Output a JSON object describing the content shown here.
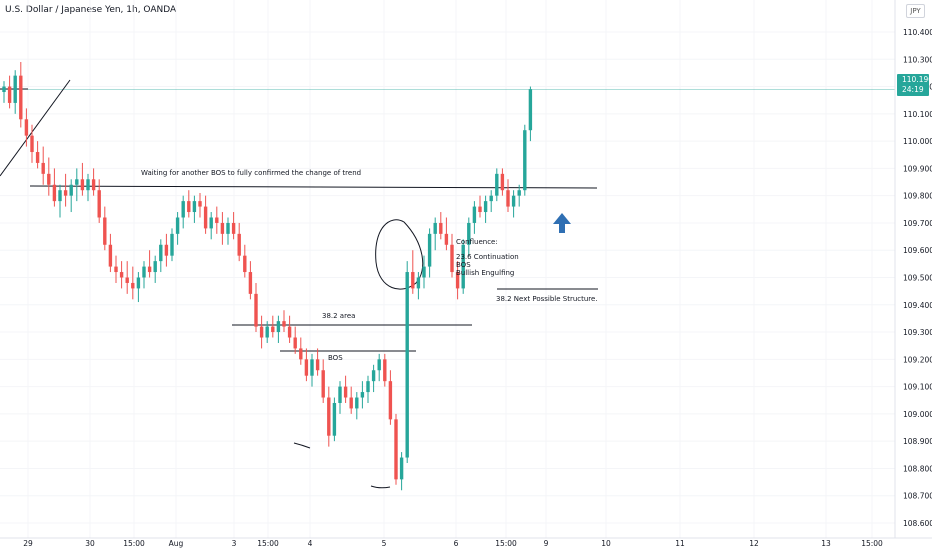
{
  "header": {
    "title": "U.S. Dollar / Japanese Yen, 1h, OANDA",
    "currency_badge": "JPY"
  },
  "last_price": {
    "value": "110.190",
    "countdown": "24:19",
    "color": "#26a69a"
  },
  "colors": {
    "up": "#26a69a",
    "down": "#ef5350",
    "last_price_line": "#26a69a",
    "arrow": "#2f6fb3"
  },
  "chart_data": {
    "type": "candlestick",
    "symbol": "USDJPY",
    "interval": "1h",
    "y_ticks": [
      "110.400",
      "110.300",
      "110.200",
      "110.100",
      "110.000",
      "109.900",
      "109.800",
      "109.700",
      "109.600",
      "109.500",
      "109.400",
      "109.300",
      "109.200",
      "109.100",
      "109.000",
      "108.900",
      "108.800",
      "108.700",
      "108.600"
    ],
    "x_ticks": [
      "29",
      "30",
      "15:00",
      "Aug",
      "3",
      "15:00",
      "4",
      "5",
      "6",
      "15:00",
      "9",
      "10",
      "11",
      "12",
      "13",
      "15:00"
    ],
    "ylim": [
      108.6,
      110.4
    ],
    "candles": [
      [
        110.18,
        110.22,
        110.14,
        110.2
      ],
      [
        110.2,
        110.24,
        110.12,
        110.14
      ],
      [
        110.14,
        110.26,
        110.1,
        110.24
      ],
      [
        110.24,
        110.29,
        110.05,
        110.08
      ],
      [
        110.08,
        110.12,
        109.98,
        110.02
      ],
      [
        110.02,
        110.06,
        109.92,
        109.96
      ],
      [
        109.96,
        110.0,
        109.9,
        109.92
      ],
      [
        109.92,
        109.98,
        109.84,
        109.88
      ],
      [
        109.88,
        109.94,
        109.8,
        109.84
      ],
      [
        109.84,
        109.9,
        109.76,
        109.78
      ],
      [
        109.78,
        109.84,
        109.72,
        109.82
      ],
      [
        109.82,
        109.88,
        109.76,
        109.8
      ],
      [
        109.8,
        109.86,
        109.74,
        109.84
      ],
      [
        109.84,
        109.9,
        109.78,
        109.86
      ],
      [
        109.86,
        109.92,
        109.8,
        109.82
      ],
      [
        109.82,
        109.88,
        109.78,
        109.86
      ],
      [
        109.86,
        109.9,
        109.8,
        109.82
      ],
      [
        109.82,
        109.86,
        109.7,
        109.72
      ],
      [
        109.72,
        109.76,
        109.6,
        109.62
      ],
      [
        109.62,
        109.66,
        109.52,
        109.54
      ],
      [
        109.54,
        109.58,
        109.48,
        109.52
      ],
      [
        109.52,
        109.56,
        109.46,
        109.5
      ],
      [
        109.5,
        109.56,
        109.44,
        109.48
      ],
      [
        109.48,
        109.54,
        109.42,
        109.46
      ],
      [
        109.46,
        109.52,
        109.41,
        109.5
      ],
      [
        109.5,
        109.56,
        109.46,
        109.54
      ],
      [
        109.54,
        109.6,
        109.5,
        109.52
      ],
      [
        109.52,
        109.58,
        109.48,
        109.56
      ],
      [
        109.56,
        109.64,
        109.52,
        109.62
      ],
      [
        109.62,
        109.66,
        109.54,
        109.58
      ],
      [
        109.58,
        109.68,
        109.56,
        109.66
      ],
      [
        109.66,
        109.74,
        109.62,
        109.72
      ],
      [
        109.72,
        109.8,
        109.68,
        109.78
      ],
      [
        109.78,
        109.82,
        109.72,
        109.74
      ],
      [
        109.74,
        109.8,
        109.7,
        109.78
      ],
      [
        109.78,
        109.81,
        109.72,
        109.76
      ],
      [
        109.76,
        109.8,
        109.66,
        109.68
      ],
      [
        109.68,
        109.74,
        109.64,
        109.72
      ],
      [
        109.72,
        109.76,
        109.66,
        109.7
      ],
      [
        109.7,
        109.74,
        109.62,
        109.66
      ],
      [
        109.66,
        109.72,
        109.62,
        109.7
      ],
      [
        109.7,
        109.74,
        109.64,
        109.66
      ],
      [
        109.66,
        109.7,
        109.56,
        109.58
      ],
      [
        109.58,
        109.62,
        109.5,
        109.52
      ],
      [
        109.52,
        109.56,
        109.42,
        109.44
      ],
      [
        109.44,
        109.48,
        109.3,
        109.32
      ],
      [
        109.32,
        109.36,
        109.24,
        109.28
      ],
      [
        109.28,
        109.34,
        109.26,
        109.32
      ],
      [
        109.32,
        109.36,
        109.28,
        109.3
      ],
      [
        109.3,
        109.36,
        109.26,
        109.34
      ],
      [
        109.34,
        109.38,
        109.3,
        109.32
      ],
      [
        109.32,
        109.36,
        109.26,
        109.28
      ],
      [
        109.28,
        109.32,
        109.22,
        109.24
      ],
      [
        109.24,
        109.28,
        109.18,
        109.2
      ],
      [
        109.2,
        109.24,
        109.12,
        109.14
      ],
      [
        109.14,
        109.22,
        109.1,
        109.2
      ],
      [
        109.2,
        109.24,
        109.14,
        109.16
      ],
      [
        109.16,
        109.2,
        109.04,
        109.06
      ],
      [
        109.06,
        109.1,
        108.88,
        108.92
      ],
      [
        108.92,
        109.06,
        108.9,
        109.04
      ],
      [
        109.04,
        109.12,
        109.0,
        109.1
      ],
      [
        109.1,
        109.14,
        109.04,
        109.06
      ],
      [
        109.06,
        109.1,
        109.0,
        109.02
      ],
      [
        109.02,
        109.08,
        108.98,
        109.06
      ],
      [
        109.06,
        109.12,
        109.02,
        109.08
      ],
      [
        109.08,
        109.14,
        109.04,
        109.12
      ],
      [
        109.12,
        109.18,
        109.08,
        109.16
      ],
      [
        109.16,
        109.22,
        109.12,
        109.2
      ],
      [
        109.2,
        109.22,
        109.1,
        109.12
      ],
      [
        109.12,
        109.16,
        108.96,
        108.98
      ],
      [
        108.98,
        109.0,
        108.74,
        108.76
      ],
      [
        108.76,
        108.86,
        108.72,
        108.84
      ],
      [
        108.84,
        109.56,
        108.82,
        109.52
      ],
      [
        109.52,
        109.6,
        109.44,
        109.46
      ],
      [
        109.46,
        109.52,
        109.42,
        109.5
      ],
      [
        109.5,
        109.58,
        109.46,
        109.54
      ],
      [
        109.54,
        109.68,
        109.5,
        109.66
      ],
      [
        109.66,
        109.72,
        109.6,
        109.7
      ],
      [
        109.7,
        109.74,
        109.64,
        109.66
      ],
      [
        109.66,
        109.72,
        109.6,
        109.62
      ],
      [
        109.62,
        109.66,
        109.5,
        109.52
      ],
      [
        109.52,
        109.56,
        109.42,
        109.46
      ],
      [
        109.46,
        109.64,
        109.44,
        109.62
      ],
      [
        109.62,
        109.72,
        109.58,
        109.7
      ],
      [
        109.7,
        109.78,
        109.66,
        109.76
      ],
      [
        109.76,
        109.8,
        109.72,
        109.74
      ],
      [
        109.74,
        109.8,
        109.7,
        109.78
      ],
      [
        109.78,
        109.82,
        109.74,
        109.8
      ],
      [
        109.8,
        109.9,
        109.78,
        109.88
      ],
      [
        109.88,
        109.9,
        109.8,
        109.82
      ],
      [
        109.82,
        109.86,
        109.74,
        109.76
      ],
      [
        109.76,
        109.82,
        109.72,
        109.8
      ],
      [
        109.8,
        109.84,
        109.76,
        109.82
      ],
      [
        109.82,
        110.06,
        109.8,
        110.04
      ],
      [
        110.04,
        110.2,
        110.0,
        110.19
      ]
    ],
    "annotations": [
      "Waiting for another BOS to fully confirmed the change of trend",
      "38.2 area",
      "BOS",
      "Confluence:",
      "23.6 Continuation",
      "BOS",
      "Bullish Engulfing",
      "38.2 Next Possible Structure."
    ]
  }
}
